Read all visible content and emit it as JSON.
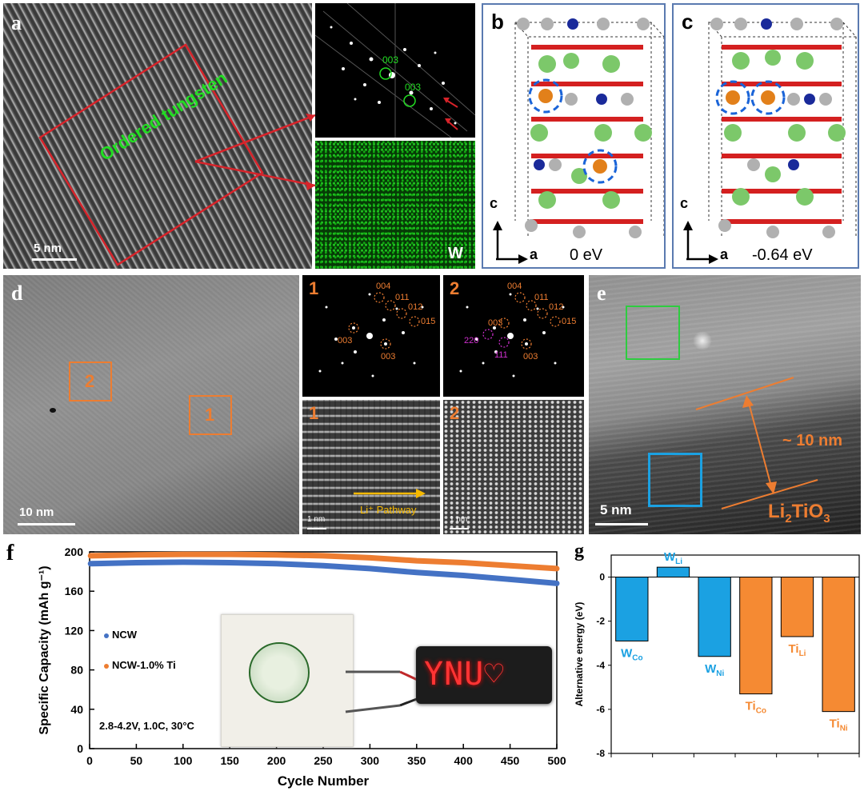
{
  "panels": {
    "a": {
      "label": "a",
      "annotation": "Ordered tungsten",
      "scale_bar": "5 nm",
      "fft_spots": [
        "003",
        "003"
      ],
      "map_element": "W"
    },
    "b": {
      "label": "b",
      "energy": "0 eV",
      "axis_c": "c",
      "axis_a": "a"
    },
    "c": {
      "label": "c",
      "energy": "-0.64 eV",
      "axis_c": "c",
      "axis_a": "a"
    },
    "d": {
      "label": "d",
      "scale_bar": "10 nm",
      "region_1": "1",
      "region_2": "2",
      "fft1_title": "1",
      "fft1_spots": [
        "004",
        "011",
        "012",
        "015",
        "003",
        "003"
      ],
      "fft2_title": "2",
      "fft2_spots": [
        "004",
        "011",
        "012",
        "015",
        "003",
        "003",
        "220",
        "111"
      ],
      "hr1_title": "1",
      "hr2_title": "2",
      "hr_scale": "1 nm",
      "pathway_label": "Li⁺ Pathway"
    },
    "e": {
      "label": "e",
      "thickness": "~ 10 nm",
      "phase_main": "Li",
      "phase_sub1": "2",
      "phase_mid": "TiO",
      "phase_sub2": "3",
      "scale_bar": "5 nm"
    },
    "f": {
      "label": "f",
      "legend": [
        "NCW",
        "NCW-1.0% Ti"
      ],
      "condition": "2.8-4.2V, 1.0C, 30°C",
      "display_text": "YNU♡"
    },
    "g": {
      "label": "g"
    }
  },
  "colors": {
    "ncw": "#4472C4",
    "ncw_ti": "#ED7D31",
    "w_bar": "#1BA1E2",
    "ti_bar": "#F58A33",
    "annotation_orange": "#ED7D31",
    "ordered_green": "#22DD22",
    "box_red": "#D8232A"
  },
  "chart_data": [
    {
      "type": "line",
      "id": "f",
      "xlabel": "Cycle Number",
      "ylabel": "Specific Capacity  (mAh g⁻¹)",
      "xlim": [
        0,
        500
      ],
      "ylim": [
        0,
        200
      ],
      "xticks": [
        0,
        50,
        100,
        150,
        200,
        250,
        300,
        350,
        400,
        450,
        500
      ],
      "yticks": [
        0,
        40,
        80,
        120,
        160,
        200
      ],
      "series": [
        {
          "name": "NCW",
          "x": [
            1,
            50,
            100,
            150,
            200,
            250,
            300,
            350,
            400,
            450,
            500
          ],
          "values": [
            188,
            189,
            189.5,
            189,
            188,
            186,
            183,
            179,
            176,
            172,
            168
          ]
        },
        {
          "name": "NCW-1.0% Ti",
          "x": [
            1,
            50,
            100,
            150,
            200,
            250,
            300,
            350,
            400,
            450,
            500
          ],
          "values": [
            196,
            197,
            197.5,
            197.5,
            197,
            196,
            194,
            191,
            189,
            186,
            183
          ]
        }
      ]
    },
    {
      "type": "bar",
      "id": "g",
      "ylabel": "Alternative energy (eV)",
      "ylim": [
        -8,
        1
      ],
      "yticks": [
        -8,
        -6,
        -4,
        -2,
        0
      ],
      "categories": [
        "W_Co",
        "W_Li",
        "W_Ni",
        "Ti_Co",
        "Ti_Li",
        "Ti_Ni"
      ],
      "bar_labels": [
        {
          "main": "W",
          "sub": "Co"
        },
        {
          "main": "W",
          "sub": "Li"
        },
        {
          "main": "W",
          "sub": "Ni"
        },
        {
          "main": "Ti",
          "sub": "Co"
        },
        {
          "main": "Ti",
          "sub": "Li"
        },
        {
          "main": "Ti",
          "sub": "Ni"
        }
      ],
      "values": [
        -2.9,
        0.45,
        -3.6,
        -5.3,
        -2.7,
        -6.1
      ],
      "groups": [
        "W",
        "W",
        "W",
        "Ti",
        "Ti",
        "Ti"
      ]
    }
  ]
}
